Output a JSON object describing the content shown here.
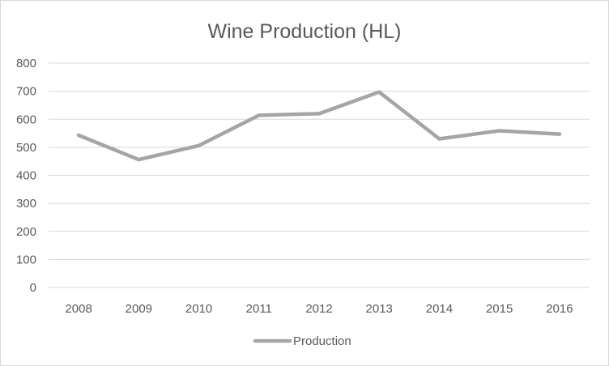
{
  "chart_data": {
    "type": "line",
    "title": "Wine Production (HL)",
    "xlabel": "",
    "ylabel": "",
    "categories": [
      "2008",
      "2009",
      "2010",
      "2011",
      "2012",
      "2013",
      "2014",
      "2015",
      "2016"
    ],
    "series": [
      {
        "name": "Production",
        "values": [
          543,
          456,
          506,
          614,
          620,
          697,
          530,
          559,
          547
        ],
        "color": "#a5a5a5"
      }
    ],
    "ylim": [
      0,
      800
    ],
    "yticks": [
      "0",
      "100",
      "200",
      "300",
      "400",
      "500",
      "600",
      "700",
      "800"
    ],
    "grid": true,
    "gridColor": "#d9d9d9",
    "legend": "bottom"
  }
}
